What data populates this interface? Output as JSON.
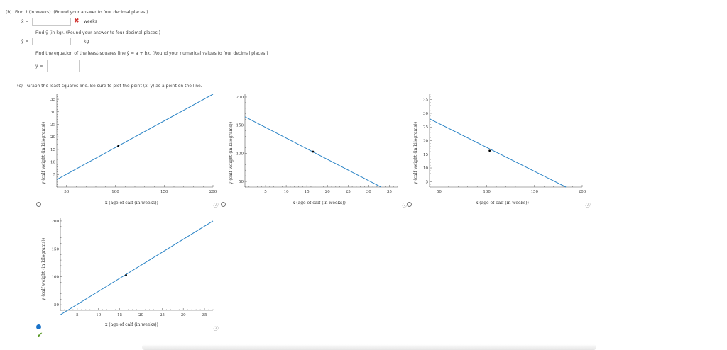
{
  "part_b": {
    "prefix": "(b)",
    "q1": "Find x̄ (in weeks). (Round your answer to four decimal places.)",
    "q1_var": "x̄ =",
    "q1_value": "",
    "q1_unit": "weeks",
    "q2": "Find ȳ (in kg). (Round your answer to four decimal places.)",
    "q2_var": "ȳ =",
    "q2_value": "",
    "q2_unit": "kg",
    "q3": "Find the equation of the least-squares line ŷ = a + bx. (Round your numerical values to four decimal places.)",
    "q3_var": "ŷ =",
    "q3_value": ""
  },
  "part_c": {
    "prefix": "(c)",
    "instruction": "Graph the least-squares line. Be sure to plot the point (x̄, ȳ) as a point on the line."
  },
  "info_glyph": "ⓘ",
  "check_glyph": "✔",
  "x_glyph": "✖",
  "colors": {
    "line": "#2b84c6",
    "point": "#000000",
    "selected": "#1a73c9",
    "wrong": "#d0312d",
    "correct": "#5a9a28"
  },
  "options": [
    {
      "selected": false,
      "ylabel": "y (calf weight (in kilograms))",
      "xlabel": "x (age of calf (in weeks))"
    },
    {
      "selected": false,
      "ylabel": "y (calf weight (in kilograms))",
      "xlabel": "x (age of calf (in weeks))"
    },
    {
      "selected": false,
      "ylabel": "y (calf weight (in kilograms))",
      "xlabel": "x (age of calf (in weeks))"
    },
    {
      "selected": true,
      "ylabel": "y (calf weight (in kilograms))",
      "xlabel": "x (age of calf (in weeks))",
      "correct": true
    }
  ],
  "chart_data": [
    {
      "type": "line",
      "xlabel": "x (age of calf (in weeks))",
      "ylabel": "y (calf weight (in kilograms))",
      "xlim": [
        40,
        200
      ],
      "ylim": [
        0,
        37
      ],
      "xticks": [
        50,
        100,
        150,
        200
      ],
      "yticks": [
        5,
        10,
        15,
        20,
        25,
        30,
        35
      ],
      "series": [
        {
          "x": [
            40,
            200
          ],
          "y": [
            3,
            37
          ]
        }
      ],
      "points": [
        {
          "x": 103,
          "y": 16.3
        }
      ]
    },
    {
      "type": "line",
      "xlabel": "x (age of calf (in weeks))",
      "ylabel": "y (calf weight (in kilograms))",
      "xlim": [
        0,
        37
      ],
      "ylim": [
        40,
        205
      ],
      "xticks": [
        5,
        10,
        15,
        20,
        25,
        30,
        35
      ],
      "yticks": [
        50,
        100,
        150,
        200
      ],
      "series": [
        {
          "x": [
            0,
            33
          ],
          "y": [
            165,
            40
          ]
        }
      ],
      "points": [
        {
          "x": 16.5,
          "y": 103
        }
      ]
    },
    {
      "type": "line",
      "xlabel": "x (age of calf (in weeks))",
      "ylabel": "y (calf weight (in kilograms))",
      "xlim": [
        40,
        200
      ],
      "ylim": [
        3,
        37
      ],
      "xticks": [
        50,
        100,
        150,
        200
      ],
      "yticks": [
        5,
        10,
        15,
        20,
        25,
        30,
        35
      ],
      "series": [
        {
          "x": [
            40,
            183
          ],
          "y": [
            28,
            3
          ]
        }
      ],
      "points": [
        {
          "x": 103,
          "y": 16.3
        }
      ]
    },
    {
      "type": "line",
      "xlabel": "x (age of calf (in weeks))",
      "ylabel": "y (calf weight (in kilograms))",
      "xlim": [
        1,
        37
      ],
      "ylim": [
        40,
        205
      ],
      "xticks": [
        5,
        10,
        15,
        20,
        25,
        30,
        35
      ],
      "yticks": [
        50,
        100,
        150,
        200
      ],
      "series": [
        {
          "x": [
            1,
            37
          ],
          "y": [
            32,
            200
          ]
        }
      ],
      "points": [
        {
          "x": 16.5,
          "y": 103
        }
      ]
    }
  ]
}
